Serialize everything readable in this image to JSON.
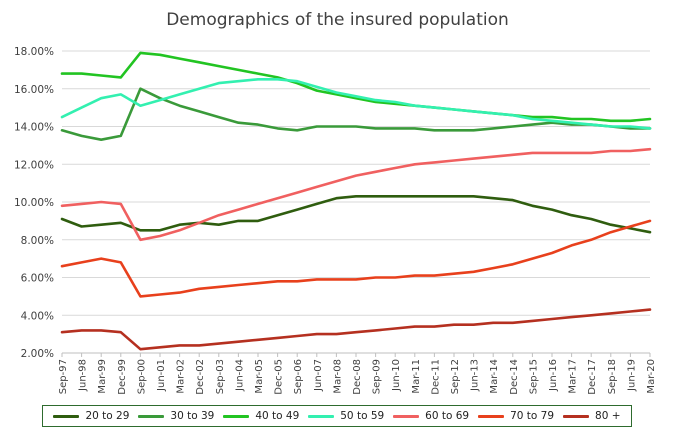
{
  "chart_data": {
    "type": "line",
    "title": "Demographics of the insured population",
    "xlabel": "",
    "ylabel": "",
    "ylim": [
      0.02,
      0.18
    ],
    "y_ticks": [
      "2.00%",
      "4.00%",
      "6.00%",
      "8.00%",
      "10.00%",
      "12.00%",
      "14.00%",
      "16.00%",
      "18.00%"
    ],
    "x_tick_labels": [
      "Sep-97",
      "Jun-98",
      "Mar-99",
      "Dec-99",
      "Sep-00",
      "Jun-01",
      "Mar-02",
      "Dec-02",
      "Sep-03",
      "Jun-04",
      "Mar-05",
      "Dec-05",
      "Sep-06",
      "Jun-07",
      "Mar-08",
      "Dec-08",
      "Sep-09",
      "Jun-10",
      "Mar-11",
      "Dec-11",
      "Sep-12",
      "Jun-13",
      "Mar-14",
      "Dec-14",
      "Sep-15",
      "Jun-16",
      "Mar-17",
      "Dec-17",
      "Sep-18",
      "Jun-19",
      "Mar-20"
    ],
    "grid": true,
    "legend_position": "bottom",
    "series": [
      {
        "name": "20 to 29",
        "color": "#2f5d0f",
        "values": [
          0.091,
          0.087,
          0.088,
          0.089,
          0.085,
          0.085,
          0.088,
          0.089,
          0.088,
          0.09,
          0.09,
          0.093,
          0.096,
          0.099,
          0.102,
          0.103,
          0.103,
          0.103,
          0.103,
          0.103,
          0.103,
          0.103,
          0.102,
          0.101,
          0.098,
          0.096,
          0.093,
          0.091,
          0.088,
          0.086,
          0.084
        ]
      },
      {
        "name": "30 to 39",
        "color": "#3a9a3a",
        "values": [
          0.138,
          0.135,
          0.133,
          0.135,
          0.16,
          0.155,
          0.151,
          0.148,
          0.145,
          0.142,
          0.141,
          0.139,
          0.138,
          0.14,
          0.14,
          0.14,
          0.139,
          0.139,
          0.139,
          0.138,
          0.138,
          0.138,
          0.139,
          0.14,
          0.141,
          0.142,
          0.141,
          0.141,
          0.14,
          0.139,
          0.139
        ]
      },
      {
        "name": "40 to 49",
        "color": "#22c422",
        "values": [
          0.168,
          0.168,
          0.167,
          0.166,
          0.179,
          0.178,
          0.176,
          0.174,
          0.172,
          0.17,
          0.168,
          0.166,
          0.163,
          0.159,
          0.157,
          0.155,
          0.153,
          0.152,
          0.151,
          0.15,
          0.149,
          0.148,
          0.147,
          0.146,
          0.145,
          0.145,
          0.144,
          0.144,
          0.143,
          0.143,
          0.144
        ]
      },
      {
        "name": "50 to 59",
        "color": "#33f0b0",
        "values": [
          0.145,
          0.15,
          0.155,
          0.157,
          0.151,
          0.154,
          0.157,
          0.16,
          0.163,
          0.164,
          0.165,
          0.165,
          0.164,
          0.161,
          0.158,
          0.156,
          0.154,
          0.153,
          0.151,
          0.15,
          0.149,
          0.148,
          0.147,
          0.146,
          0.144,
          0.143,
          0.142,
          0.141,
          0.14,
          0.14,
          0.139
        ]
      },
      {
        "name": "60 to 69",
        "color": "#f06060",
        "values": [
          0.098,
          0.099,
          0.1,
          0.099,
          0.08,
          0.082,
          0.085,
          0.089,
          0.093,
          0.096,
          0.099,
          0.102,
          0.105,
          0.108,
          0.111,
          0.114,
          0.116,
          0.118,
          0.12,
          0.121,
          0.122,
          0.123,
          0.124,
          0.125,
          0.126,
          0.126,
          0.126,
          0.126,
          0.127,
          0.127,
          0.128
        ]
      },
      {
        "name": "70 to 79",
        "color": "#e8401c",
        "values": [
          0.066,
          0.068,
          0.07,
          0.068,
          0.05,
          0.051,
          0.052,
          0.054,
          0.055,
          0.056,
          0.057,
          0.058,
          0.058,
          0.059,
          0.059,
          0.059,
          0.06,
          0.06,
          0.061,
          0.061,
          0.062,
          0.063,
          0.065,
          0.067,
          0.07,
          0.073,
          0.077,
          0.08,
          0.084,
          0.087,
          0.09
        ]
      },
      {
        "name": "80 +",
        "color": "#b53020",
        "values": [
          0.031,
          0.032,
          0.032,
          0.031,
          0.022,
          0.023,
          0.024,
          0.024,
          0.025,
          0.026,
          0.027,
          0.028,
          0.029,
          0.03,
          0.03,
          0.031,
          0.032,
          0.033,
          0.034,
          0.034,
          0.035,
          0.035,
          0.036,
          0.036,
          0.037,
          0.038,
          0.039,
          0.04,
          0.041,
          0.042,
          0.043
        ]
      }
    ]
  }
}
